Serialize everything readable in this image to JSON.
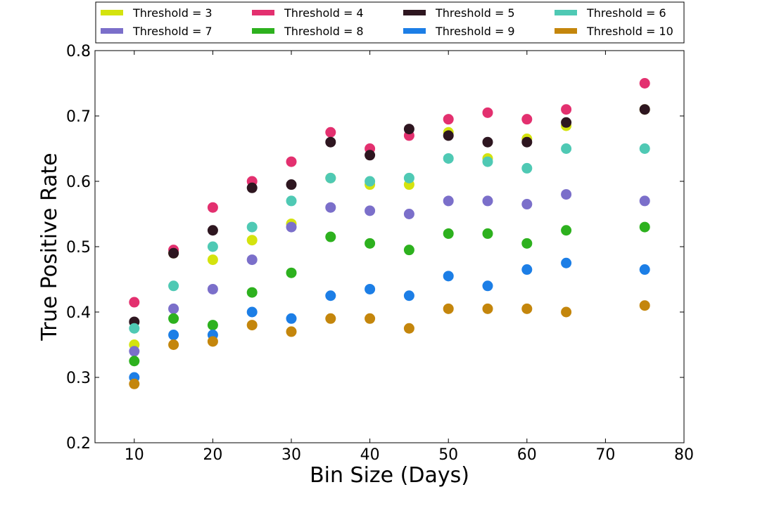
{
  "chart_data": {
    "type": "scatter",
    "title": "",
    "xlabel": "Bin Size (Days)",
    "ylabel": "True Positive Rate",
    "xlim": [
      5,
      80
    ],
    "ylim": [
      0.2,
      0.8
    ],
    "xticks": [
      "10",
      "20",
      "30",
      "40",
      "50",
      "60",
      "70",
      "80"
    ],
    "yticks": [
      "0.2",
      "0.3",
      "0.4",
      "0.5",
      "0.6",
      "0.7",
      "0.8"
    ],
    "grid": false,
    "legend_position": "top",
    "legend_columns": 4,
    "x": [
      10,
      15,
      20,
      25,
      30,
      35,
      40,
      45,
      50,
      55,
      60,
      65,
      75
    ],
    "series": [
      {
        "name": "Threshold = 3",
        "color": "#d4e30e",
        "values": [
          0.35,
          0.49,
          0.48,
          0.51,
          0.535,
          0.605,
          0.595,
          0.595,
          0.675,
          0.635,
          0.665,
          0.685,
          0.71
        ]
      },
      {
        "name": "Threshold = 4",
        "color": "#e3306f",
        "values": [
          0.415,
          0.495,
          0.56,
          0.6,
          0.63,
          0.675,
          0.65,
          0.67,
          0.695,
          0.705,
          0.695,
          0.71,
          0.75
        ]
      },
      {
        "name": "Threshold = 5",
        "color": "#2e1620",
        "values": [
          0.385,
          0.49,
          0.525,
          0.59,
          0.595,
          0.66,
          0.64,
          0.68,
          0.67,
          0.66,
          0.66,
          0.69,
          0.71
        ]
      },
      {
        "name": "Threshold = 6",
        "color": "#4fc9b4",
        "values": [
          0.375,
          0.44,
          0.5,
          0.53,
          0.57,
          0.605,
          0.6,
          0.605,
          0.635,
          0.63,
          0.62,
          0.65,
          0.65
        ]
      },
      {
        "name": "Threshold = 7",
        "color": "#7b6fca",
        "values": [
          0.34,
          0.405,
          0.435,
          0.48,
          0.53,
          0.56,
          0.555,
          0.55,
          0.57,
          0.57,
          0.565,
          0.58,
          0.57
        ]
      },
      {
        "name": "Threshold = 8",
        "color": "#2db11e",
        "values": [
          0.325,
          0.39,
          0.38,
          0.43,
          0.46,
          0.515,
          0.505,
          0.495,
          0.52,
          0.52,
          0.505,
          0.525,
          0.53
        ]
      },
      {
        "name": "Threshold = 9",
        "color": "#1c7ee6",
        "values": [
          0.3,
          0.365,
          0.365,
          0.4,
          0.39,
          0.425,
          0.435,
          0.425,
          0.455,
          0.44,
          0.465,
          0.475,
          0.465
        ]
      },
      {
        "name": "Threshold = 10",
        "color": "#c4860c",
        "values": [
          0.29,
          0.35,
          0.355,
          0.38,
          0.37,
          0.39,
          0.39,
          0.375,
          0.405,
          0.405,
          0.405,
          0.4,
          0.41
        ]
      }
    ]
  }
}
